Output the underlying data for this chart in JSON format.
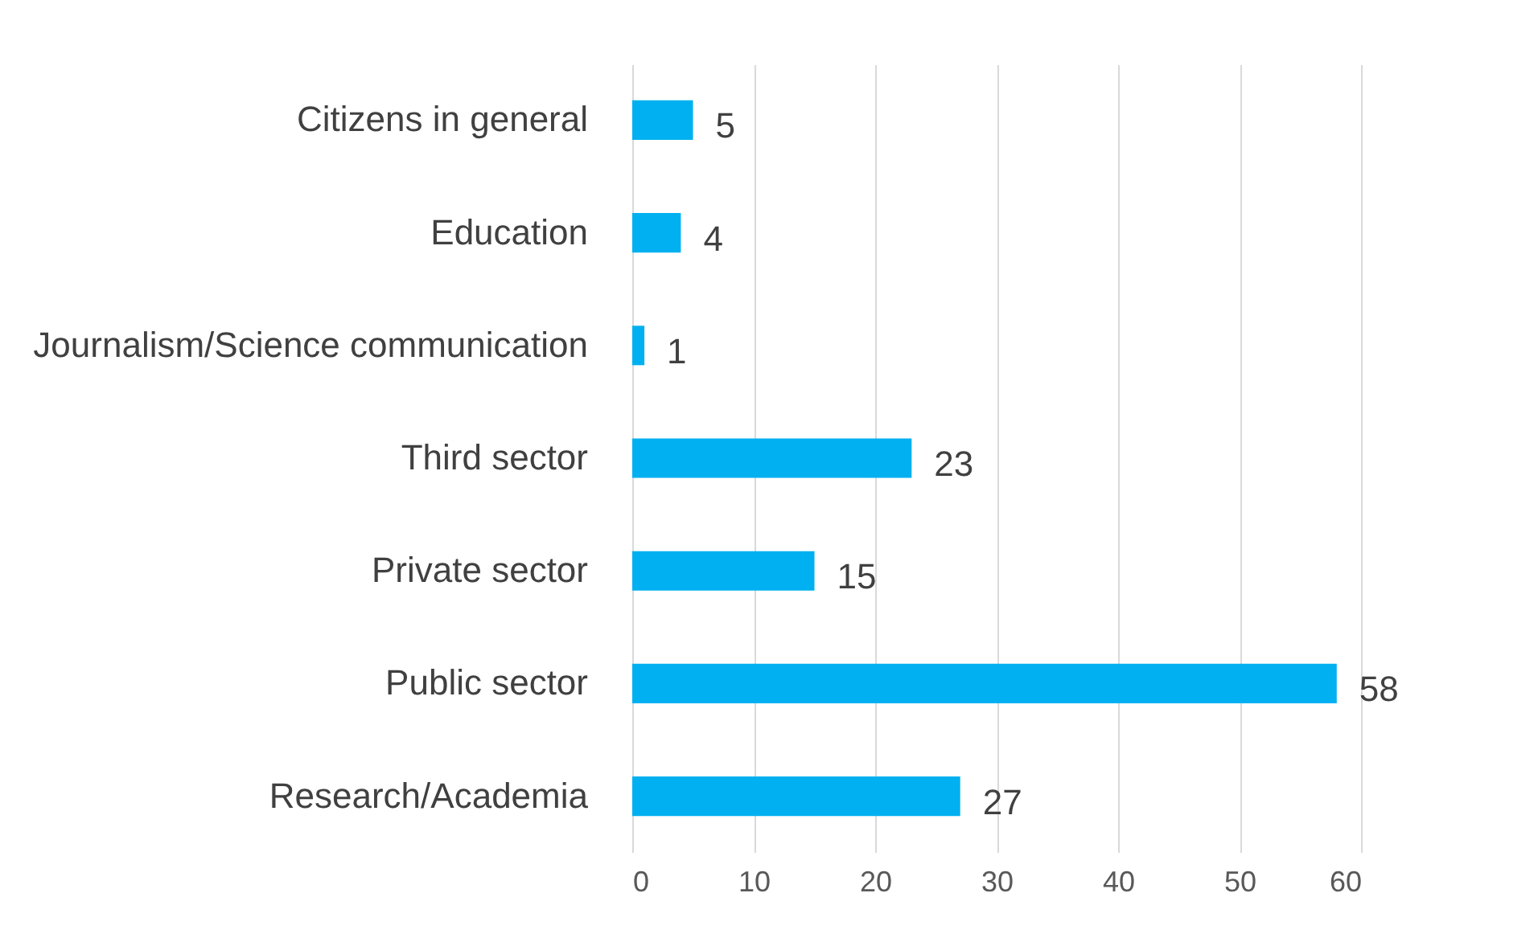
{
  "chart_data": {
    "type": "bar",
    "orientation": "horizontal",
    "categories": [
      "Citizens in general",
      "Education",
      "Journalism/Science communication",
      "Third sector",
      "Private sector",
      "Public sector",
      "Research/Academia"
    ],
    "values": [
      5,
      4,
      1,
      23,
      15,
      58,
      27
    ],
    "color": "#00b0f0",
    "xlim": [
      0,
      60
    ],
    "xticks": [
      0,
      10,
      20,
      30,
      40,
      50,
      60
    ],
    "grid": "x",
    "data_labels": true
  }
}
